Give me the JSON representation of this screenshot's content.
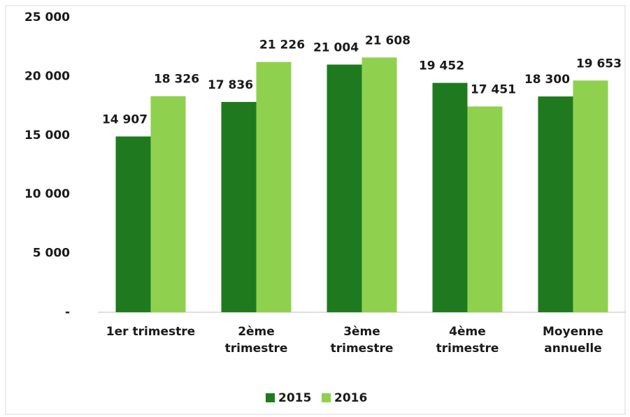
{
  "chart_data": {
    "type": "bar",
    "categories": [
      "1er trimestre",
      "2ème trimestre",
      "3ème trimestre",
      "4ème trimestre",
      "Moyenne annuelle"
    ],
    "series": [
      {
        "name": "2015",
        "color": "#1f7a1f",
        "values": [
          14907,
          17836,
          21004,
          19452,
          18300
        ],
        "value_labels": [
          "14 907",
          "17 836",
          "21 004",
          "19 452",
          "18 300"
        ]
      },
      {
        "name": "2016",
        "color": "#8fd14f",
        "values": [
          18326,
          21226,
          21608,
          17451,
          19653
        ],
        "value_labels": [
          "18 326",
          "21 226",
          "21 608",
          "17 451",
          "19 653"
        ]
      }
    ],
    "ylim": [
      0,
      25000
    ],
    "yticks": [
      {
        "value": 0,
        "label": "-"
      },
      {
        "value": 5000,
        "label": "5 000"
      },
      {
        "value": 10000,
        "label": "10 000"
      },
      {
        "value": 15000,
        "label": "15 000"
      },
      {
        "value": 20000,
        "label": "20 000"
      },
      {
        "value": 25000,
        "label": "25 000"
      }
    ],
    "grid": false,
    "legend": "bottom"
  }
}
